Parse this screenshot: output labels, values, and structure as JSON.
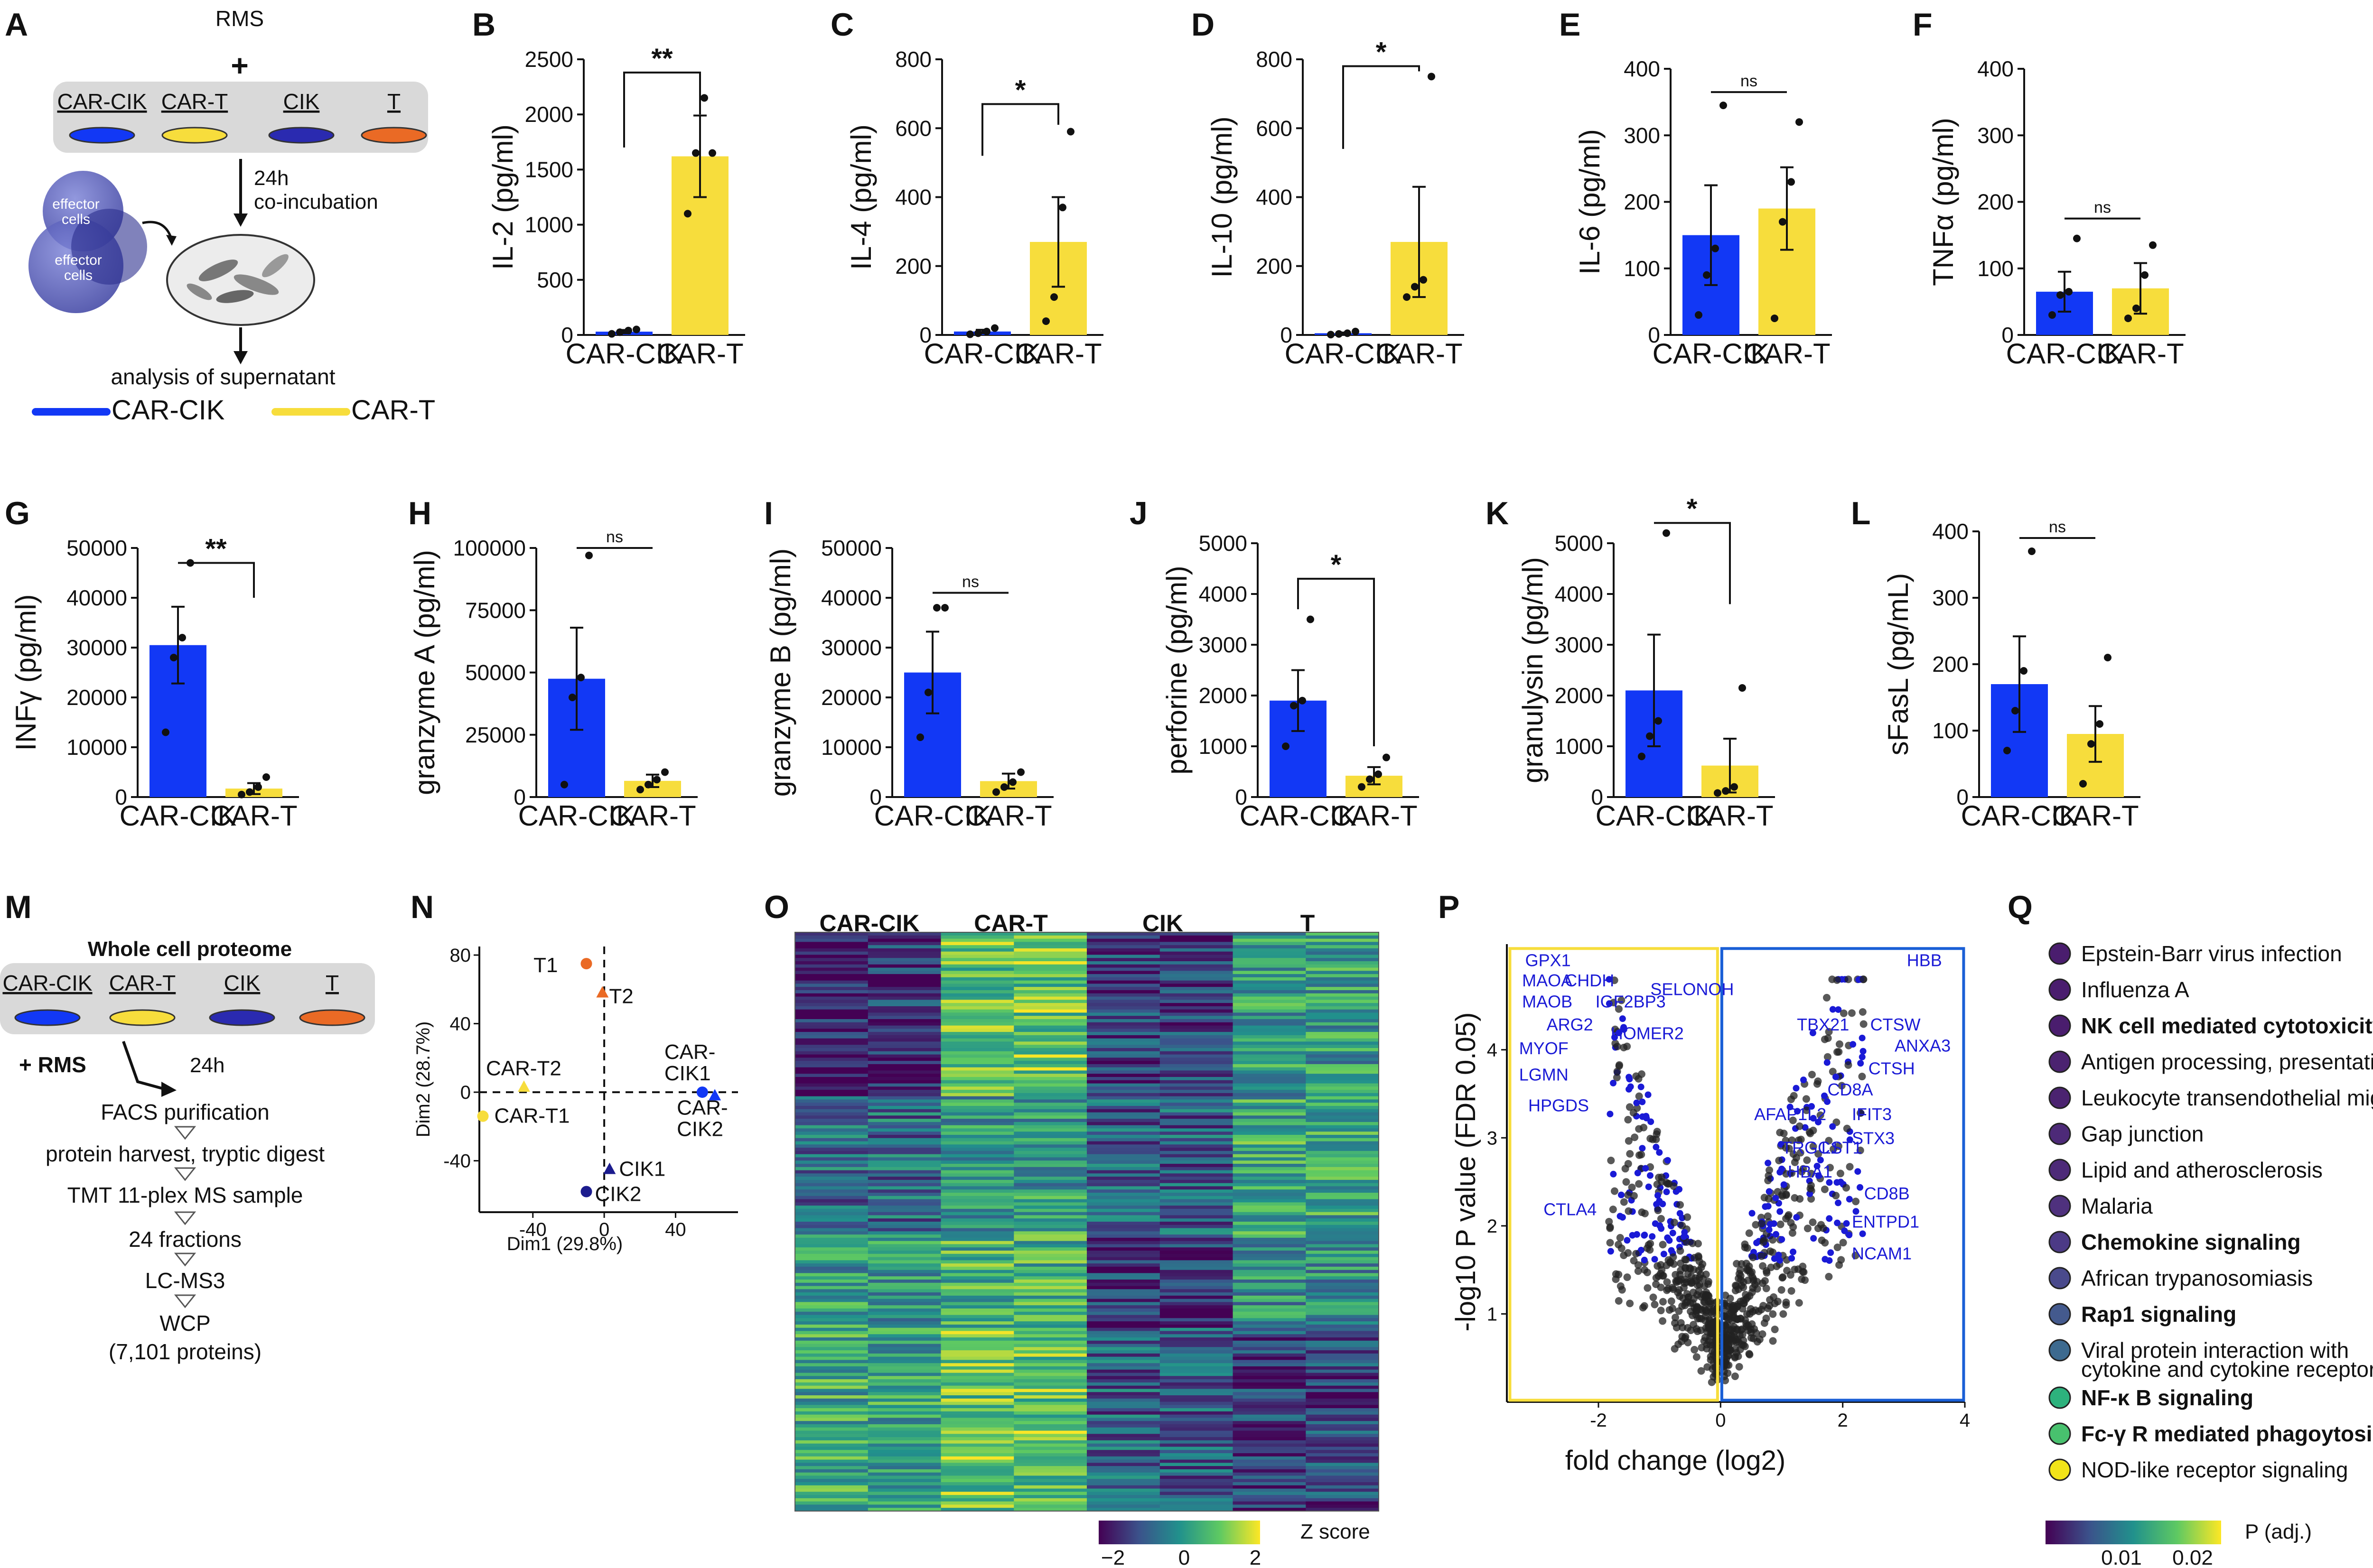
{
  "panel_letters": [
    "A",
    "B",
    "C",
    "D",
    "E",
    "F",
    "G",
    "H",
    "I",
    "J",
    "K",
    "L",
    "M",
    "N",
    "O",
    "P",
    "Q"
  ],
  "colors": {
    "car_cik": "#1238F5",
    "car_t": "#F7DD3C",
    "cik": "#1C1C8E",
    "t": "#EA6A25",
    "dish": "#d9d9d9"
  },
  "panel_a": {
    "rms": "RMS",
    "plus": "+",
    "dish_labels": [
      "CAR-CIK",
      "CAR-T",
      "CIK",
      "T"
    ],
    "step1": "24h",
    "step2": "co-incubation",
    "effector": "effector",
    "cells": "cells",
    "analysis": "analysis of supernatant",
    "legend": [
      "CAR-CIK",
      "CAR-T"
    ]
  },
  "chart_data": [
    {
      "type": "bar",
      "id": "B",
      "title": "",
      "ylabel": "IL-2 (pg/ml)",
      "categories": [
        "CAR-CIK",
        "CAR-T"
      ],
      "values": [
        30,
        1620
      ],
      "errors": [
        15,
        370
      ],
      "points": [
        [
          10,
          25,
          40,
          50
        ],
        [
          1100,
          1650,
          2150,
          1650
        ]
      ],
      "ylim": [
        0,
        2500
      ],
      "yticks": [
        0,
        500,
        1000,
        1500,
        2000,
        2500
      ],
      "sig": "**",
      "bracket_y": 2380,
      "drop_left": 1700,
      "drop_right": 2000
    },
    {
      "type": "bar",
      "id": "C",
      "ylabel": "IL-4 (pg/ml)",
      "categories": [
        "CAR-CIK",
        "CAR-T"
      ],
      "values": [
        10,
        270
      ],
      "errors": [
        5,
        130
      ],
      "points": [
        [
          2,
          5,
          10,
          20
        ],
        [
          40,
          110,
          370,
          590
        ]
      ],
      "ylim": [
        0,
        800
      ],
      "yticks": [
        0,
        200,
        400,
        600,
        800
      ],
      "sig": "*",
      "bracket_y": 670,
      "drop_left": 520,
      "drop_right": 610
    },
    {
      "type": "bar",
      "id": "D",
      "ylabel": "IL-10 (pg/ml)",
      "categories": [
        "CAR-CIK",
        "CAR-T"
      ],
      "values": [
        5,
        270
      ],
      "errors": [
        2,
        160
      ],
      "points": [
        [
          1,
          3,
          5,
          10
        ],
        [
          110,
          140,
          160,
          750
        ]
      ],
      "ylim": [
        0,
        800
      ],
      "yticks": [
        0,
        200,
        400,
        600,
        800
      ],
      "sig": "*",
      "bracket_y": 780,
      "drop_left": 540,
      "drop_right": 765
    },
    {
      "type": "bar",
      "id": "E",
      "ylabel": "IL-6 (pg/ml)",
      "categories": [
        "CAR-CIK",
        "CAR-T"
      ],
      "values": [
        150,
        190
      ],
      "errors": [
        75,
        62
      ],
      "points": [
        [
          30,
          90,
          130,
          345
        ],
        [
          25,
          170,
          230,
          320
        ]
      ],
      "ylim": [
        0,
        400
      ],
      "yticks": [
        0,
        100,
        200,
        300,
        400
      ],
      "sig": "ns",
      "bracket_y": 365,
      "drop_left": 365,
      "drop_right": 365
    },
    {
      "type": "bar",
      "id": "F",
      "ylabel": "TNFα (pg/ml)",
      "categories": [
        "CAR-CIK",
        "CAR-T"
      ],
      "values": [
        65,
        70
      ],
      "errors": [
        30,
        38
      ],
      "points": [
        [
          30,
          60,
          65,
          145
        ],
        [
          25,
          40,
          90,
          135
        ]
      ],
      "ylim": [
        0,
        400
      ],
      "yticks": [
        0,
        100,
        200,
        300,
        400
      ],
      "sig": "ns",
      "bracket_y": 175,
      "drop_left": 175,
      "drop_right": 175
    },
    {
      "type": "bar",
      "id": "G",
      "ylabel": "INFγ (pg/ml)",
      "categories": [
        "CAR-CIK",
        "CAR-T"
      ],
      "values": [
        30500,
        1700
      ],
      "errors": [
        7700,
        1100
      ],
      "points": [
        [
          13000,
          28000,
          32000,
          47000
        ],
        [
          500,
          1000,
          2000,
          4000
        ]
      ],
      "ylim": [
        0,
        50000
      ],
      "yticks": [
        0,
        10000,
        20000,
        30000,
        40000,
        50000
      ],
      "sig": "**",
      "bracket_y": 47000,
      "drop_left": 47000,
      "drop_right": 40000
    },
    {
      "type": "bar",
      "id": "H",
      "ylabel": "granzyme A (pg/ml)",
      "categories": [
        "CAR-CIK",
        "CAR-T"
      ],
      "values": [
        47500,
        6500
      ],
      "errors": [
        20500,
        2500
      ],
      "points": [
        [
          5000,
          40000,
          48000,
          97000
        ],
        [
          3000,
          5000,
          7000,
          10000
        ]
      ],
      "ylim": [
        0,
        100000
      ],
      "yticks": [
        0,
        25000,
        50000,
        75000,
        100000
      ],
      "sig": "ns",
      "bracket_y": 100000,
      "drop_left": 100000,
      "drop_right": 100000
    },
    {
      "type": "bar",
      "id": "I",
      "ylabel": "granzyme B (pg/ml)",
      "categories": [
        "CAR-CIK",
        "CAR-T"
      ],
      "values": [
        25000,
        3200
      ],
      "errors": [
        8200,
        1500
      ],
      "points": [
        [
          12000,
          21000,
          38000,
          38000
        ],
        [
          1000,
          2000,
          3000,
          5000
        ]
      ],
      "ylim": [
        0,
        50000
      ],
      "yticks": [
        0,
        10000,
        20000,
        30000,
        40000,
        50000
      ],
      "sig": "ns",
      "bracket_y": 41000,
      "drop_left": 41000,
      "drop_right": 41000
    },
    {
      "type": "bar",
      "id": "J",
      "ylabel": "perforine (pg/ml)",
      "categories": [
        "CAR-CIK",
        "CAR-T"
      ],
      "values": [
        1900,
        420
      ],
      "errors": [
        600,
        170
      ],
      "points": [
        [
          1000,
          1800,
          1900,
          3500
        ],
        [
          200,
          350,
          450,
          780
        ]
      ],
      "ylim": [
        0,
        5000
      ],
      "yticks": [
        0,
        1000,
        2000,
        3000,
        4000,
        5000
      ],
      "sig": "*",
      "bracket_y": 4300,
      "drop_left": 3700,
      "drop_right": 1000
    },
    {
      "type": "bar",
      "id": "K",
      "ylabel": "granulysin (pg/ml)",
      "categories": [
        "CAR-CIK",
        "CAR-T"
      ],
      "values": [
        2100,
        620
      ],
      "errors": [
        1100,
        530
      ],
      "points": [
        [
          800,
          1200,
          1500,
          5200
        ],
        [
          80,
          120,
          200,
          2150
        ]
      ],
      "ylim": [
        0,
        5000
      ],
      "yticks": [
        0,
        1000,
        2000,
        3000,
        4000,
        5000
      ],
      "sig": "*",
      "bracket_y": 5400,
      "drop_left": 5400,
      "drop_right": 3800
    },
    {
      "type": "bar",
      "id": "L",
      "ylabel": "sFasL (pg/mL)",
      "categories": [
        "CAR-CIK",
        "CAR-T"
      ],
      "values": [
        170,
        95
      ],
      "errors": [
        72,
        42
      ],
      "points": [
        [
          70,
          130,
          190,
          370
        ],
        [
          20,
          80,
          110,
          210
        ]
      ],
      "ylim": [
        0,
        400
      ],
      "yticks": [
        0,
        100,
        200,
        300,
        400
      ],
      "sig": "ns",
      "bracket_y": 390,
      "drop_left": 390,
      "drop_right": 390
    },
    {
      "type": "scatter",
      "id": "N",
      "xlabel": "Dim1 (29.8%)",
      "ylabel": "Dim2 (28.7%)",
      "xticks": [
        -40,
        0,
        40
      ],
      "yticks": [
        -40,
        0,
        40,
        80
      ],
      "xlim": [
        -70,
        75
      ],
      "ylim": [
        -70,
        85
      ],
      "points": [
        {
          "label": "T1",
          "x": -10,
          "y": 75,
          "group": "t",
          "shape": "circle"
        },
        {
          "label": "T2",
          "x": -1,
          "y": 58,
          "group": "t",
          "shape": "triangle"
        },
        {
          "label": "CAR-T2",
          "x": -45,
          "y": 3,
          "group": "car_t",
          "shape": "triangle"
        },
        {
          "label": "CAR-T1",
          "x": -68,
          "y": -14,
          "group": "car_t",
          "shape": "circle"
        },
        {
          "label": "CAR-CIK1",
          "x": 55,
          "y": 0,
          "group": "car_cik",
          "shape": "circle"
        },
        {
          "label": "CAR-CIK2",
          "x": 62,
          "y": -2,
          "group": "car_cik",
          "shape": "triangle"
        },
        {
          "label": "CIK1",
          "x": 3,
          "y": -45,
          "group": "cik",
          "shape": "triangle"
        },
        {
          "label": "CIK2",
          "x": -10,
          "y": -58,
          "group": "cik",
          "shape": "circle"
        }
      ]
    },
    {
      "type": "heatmap",
      "id": "O",
      "column_groups": [
        "CAR-CIK",
        "CAR-T",
        "CIK",
        "T"
      ],
      "colorbar_label": "Z score",
      "colorbar_ticks": [
        "−2",
        "0",
        "2"
      ]
    },
    {
      "type": "scatter",
      "id": "P",
      "xlabel": "fold change (log2)",
      "ylabel": "-log10 P value (FDR 0.05)",
      "xticks": [
        -2,
        0,
        2,
        4
      ],
      "yticks": [
        1,
        2,
        3,
        4
      ],
      "xlim": [
        -3.5,
        4.0
      ],
      "ylim": [
        0,
        5.2
      ],
      "labels_left": [
        "GPX1",
        "MAOA",
        "CHDH",
        "MAOB",
        "IGF2BP3",
        "SELONOH",
        "ARG2",
        "HOMER2",
        "MYOF",
        "LGMN",
        "HPGDS",
        "CTLA4"
      ],
      "labels_right": [
        "HBB",
        "TBX21",
        "CTSW",
        "ANXA3",
        "CTSH",
        "CD8A",
        "AFAP1L2",
        "IFIT3",
        "STX3",
        "TRGC1",
        "LST1",
        "HBA1",
        "CD8B",
        "ENTPD1",
        "NCAM1"
      ]
    },
    {
      "type": "table",
      "id": "Q",
      "colorbar_label": "P (adj.)",
      "colorbar_ticks": [
        "0.01",
        "0.02"
      ],
      "pathways": [
        {
          "name": "Epstein-Barr virus infection",
          "bold": false,
          "color": "#4a1d6e"
        },
        {
          "name": "Influenza A",
          "bold": false,
          "color": "#4a1d6e"
        },
        {
          "name": "NK cell mediated cytotoxicity",
          "bold": true,
          "color": "#4a1d6e"
        },
        {
          "name": "Antigen processing, presentation",
          "bold": false,
          "color": "#4b2370"
        },
        {
          "name": "Leukocyte transendothelial migration",
          "bold": false,
          "color": "#4b2370"
        },
        {
          "name": "Gap junction",
          "bold": false,
          "color": "#4d2a78"
        },
        {
          "name": "Lipid and atherosclerosis",
          "bold": false,
          "color": "#4d2a78"
        },
        {
          "name": "Malaria",
          "bold": false,
          "color": "#4f317e"
        },
        {
          "name": "Chemokine signaling",
          "bold": true,
          "color": "#4c3a86"
        },
        {
          "name": "African trypanosomiasis",
          "bold": false,
          "color": "#4a4a8c"
        },
        {
          "name": "Rap1 signaling",
          "bold": true,
          "color": "#445a8e"
        },
        {
          "name": "Viral protein interaction with",
          "bold": false,
          "color": "#3d6a8f"
        },
        {
          "name": "NF-κ B signaling",
          "bold": true,
          "color": "#2db27d"
        },
        {
          "name": "Fc-γ R mediated phagoytosis",
          "bold": true,
          "color": "#48c16e"
        },
        {
          "name": "NOD-like receptor signaling",
          "bold": false,
          "color": "#f2e419"
        }
      ],
      "viral_line2": "cytokine and cytokine receptor"
    }
  ],
  "panel_m": {
    "title": "Whole cell proteome",
    "dish_labels": [
      "CAR-CIK",
      "CAR-T",
      "CIK",
      "T"
    ],
    "rms": "+ RMS",
    "time": "24h",
    "steps": [
      "FACS purification",
      "protein harvest, tryptic digest",
      "TMT 11-plex MS sample",
      "24 fractions",
      "LC-MS3",
      "WCP",
      "(7,101 proteins)"
    ]
  }
}
